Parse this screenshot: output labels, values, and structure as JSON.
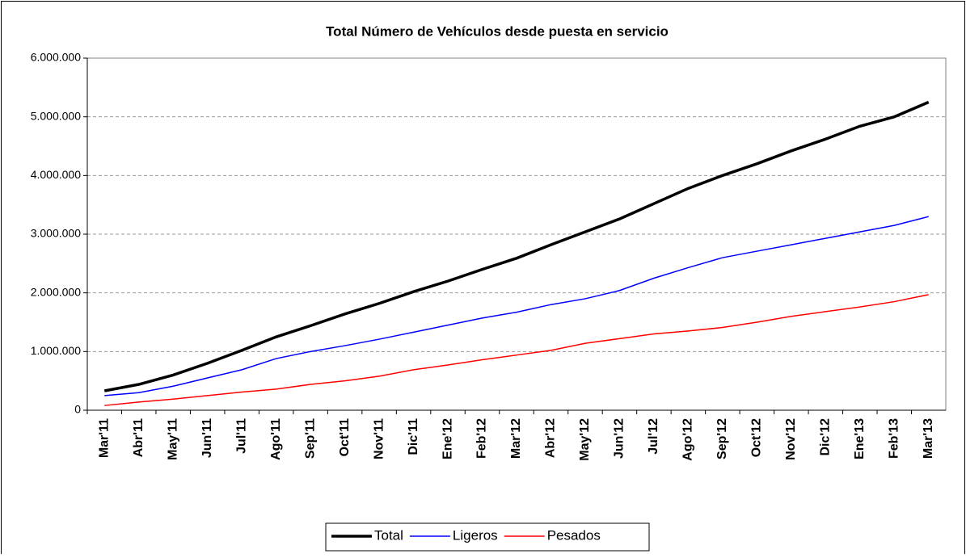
{
  "chart_data": {
    "type": "line",
    "title": "Total Número de Vehículos desde puesta en servicio",
    "categories": [
      "Mar'11",
      "Abr'11",
      "May'11",
      "Jun'11",
      "Jul'11",
      "Ago'11",
      "Sep'11",
      "Oct'11",
      "Nov'11",
      "Dic'11",
      "Ene'12",
      "Feb'12",
      "Mar'12",
      "Abr'12",
      "May'12",
      "Jun'12",
      "Jul'12",
      "Ago'12",
      "Sep'12",
      "Oct'12",
      "Nov'12",
      "Dic'12",
      "Ene'13",
      "Feb'13",
      "Mar'13"
    ],
    "series": [
      {
        "name": "Total",
        "color": "#000000",
        "values": [
          330000,
          440000,
          600000,
          800000,
          1020000,
          1250000,
          1440000,
          1640000,
          1820000,
          2020000,
          2200000,
          2400000,
          2590000,
          2820000,
          3040000,
          3260000,
          3520000,
          3780000,
          4000000,
          4200000,
          4420000,
          4620000,
          4840000,
          5000000,
          5250000
        ]
      },
      {
        "name": "Ligeros",
        "color": "#0000ff",
        "values": [
          250000,
          300000,
          410000,
          550000,
          690000,
          880000,
          1000000,
          1100000,
          1210000,
          1330000,
          1450000,
          1570000,
          1670000,
          1800000,
          1900000,
          2040000,
          2250000,
          2430000,
          2600000,
          2710000,
          2820000,
          2930000,
          3040000,
          3150000,
          3300000
        ]
      },
      {
        "name": "Pesados",
        "color": "#ff0000",
        "values": [
          80000,
          140000,
          190000,
          250000,
          310000,
          360000,
          440000,
          500000,
          580000,
          690000,
          770000,
          860000,
          940000,
          1020000,
          1140000,
          1220000,
          1300000,
          1350000,
          1410000,
          1500000,
          1600000,
          1680000,
          1760000,
          1850000,
          1970000
        ]
      }
    ],
    "ylim": [
      0,
      6000000
    ],
    "yticks": [
      0,
      {
        "value": 1000000,
        "label": "1.000.000"
      },
      {
        "value": 2000000,
        "label": "2.000.000"
      },
      {
        "value": 3000000,
        "label": "3.000.000"
      },
      {
        "value": 4000000,
        "label": "4.000.000"
      },
      {
        "value": 5000000,
        "label": "5.000.000"
      },
      {
        "value": 6000000,
        "label": "6.000.000"
      }
    ],
    "grid": true,
    "legend": "bottom"
  }
}
